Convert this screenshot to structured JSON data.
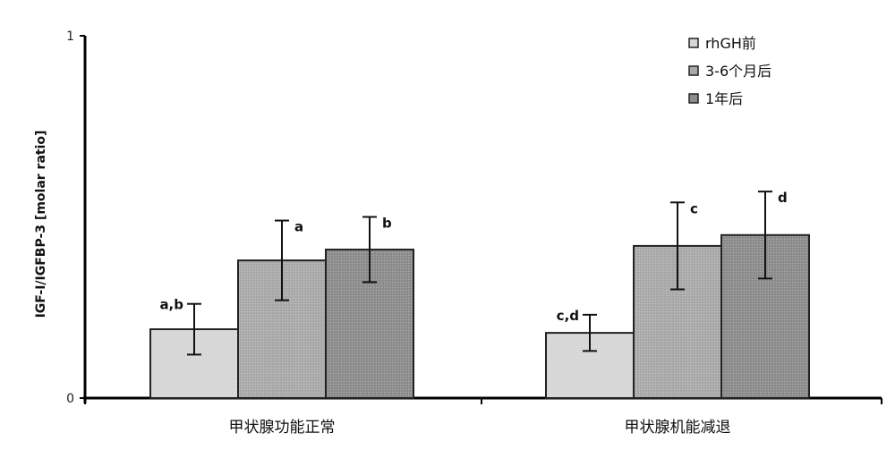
{
  "chart_data": {
    "type": "bar",
    "title": "",
    "ylabel": "IGF-I/IGFBP-3 [molar ratio]",
    "xlabel": "",
    "ylim": [
      0,
      1
    ],
    "y_ticks": [
      "0",
      "1"
    ],
    "categories": [
      "甲状腺功能正常",
      "甲状腺机能减退"
    ],
    "legend_position": "top-right",
    "series": [
      {
        "name": "rhGH前",
        "color": "#d6d6d6",
        "values": [
          0.19,
          0.18
        ],
        "errors": [
          0.07,
          0.05
        ],
        "labels": [
          "a,b",
          "c,d"
        ]
      },
      {
        "name": "3-6个月后",
        "color": "#a9a9a9",
        "values": [
          0.38,
          0.42
        ],
        "errors": [
          0.11,
          0.12
        ],
        "labels": [
          "a",
          "c"
        ]
      },
      {
        "name": "1年后",
        "color": "#8c8c8c",
        "values": [
          0.41,
          0.45
        ],
        "errors": [
          0.09,
          0.12
        ],
        "labels": [
          "b",
          "d"
        ]
      }
    ]
  }
}
